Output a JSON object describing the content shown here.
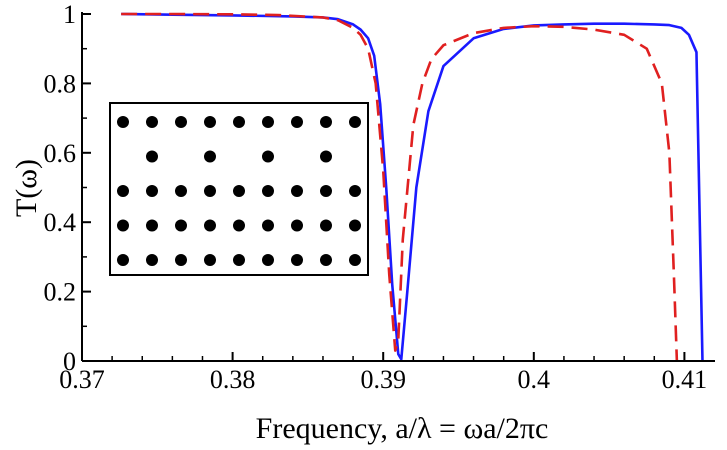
{
  "chart_data": {
    "type": "line",
    "title": "",
    "xlabel": "Frequency,  a/λ = ωa/2πc",
    "ylabel": "T(ω)",
    "xlim": [
      0.37,
      0.4115
    ],
    "ylim": [
      0,
      1
    ],
    "xticks": [
      0.37,
      0.38,
      0.39,
      0.4,
      0.41
    ],
    "xtick_labels": [
      "0.37",
      "0.38",
      "0.39",
      "0.4",
      "0.41"
    ],
    "yticks": [
      0,
      0.2,
      0.4,
      0.6,
      0.8,
      1
    ],
    "ytick_labels": [
      "0",
      "0.2",
      "0.4",
      "0.6",
      "0.8",
      "1"
    ],
    "grid": false,
    "legend": "none",
    "series": [
      {
        "color": "#1a1aff",
        "style": "solid",
        "x": [
          0.3726,
          0.376,
          0.38,
          0.384,
          0.386,
          0.387,
          0.388,
          0.3885,
          0.389,
          0.3894,
          0.3898,
          0.3902,
          0.3906,
          0.391,
          0.3912,
          0.3916,
          0.3922,
          0.393,
          0.394,
          0.396,
          0.398,
          0.4,
          0.402,
          0.404,
          0.406,
          0.408,
          0.409,
          0.4098,
          0.4103,
          0.4108,
          0.4112
        ],
        "y": [
          1.0,
          0.998,
          0.996,
          0.993,
          0.99,
          0.985,
          0.97,
          0.955,
          0.93,
          0.88,
          0.74,
          0.5,
          0.22,
          0.02,
          0.005,
          0.2,
          0.5,
          0.72,
          0.85,
          0.93,
          0.957,
          0.967,
          0.97,
          0.972,
          0.972,
          0.97,
          0.968,
          0.96,
          0.94,
          0.89,
          0.0
        ]
      },
      {
        "color": "#e02020",
        "style": "dashed",
        "x": [
          0.3726,
          0.376,
          0.38,
          0.383,
          0.386,
          0.387,
          0.388,
          0.3885,
          0.389,
          0.3895,
          0.39,
          0.3904,
          0.3908,
          0.391,
          0.3913,
          0.392,
          0.3926,
          0.3932,
          0.394,
          0.396,
          0.398,
          0.4,
          0.402,
          0.404,
          0.406,
          0.4075,
          0.4085,
          0.409,
          0.4093,
          0.4095
        ],
        "y": [
          1.0,
          1.0,
          0.999,
          0.997,
          0.99,
          0.982,
          0.96,
          0.94,
          0.9,
          0.8,
          0.55,
          0.25,
          0.03,
          0.06,
          0.35,
          0.68,
          0.8,
          0.87,
          0.91,
          0.945,
          0.96,
          0.965,
          0.963,
          0.955,
          0.94,
          0.9,
          0.8,
          0.6,
          0.25,
          0.0
        ]
      }
    ],
    "inset": {
      "content": "photonic crystal lattice of dots",
      "rows": [
        [
          1,
          1,
          1,
          1,
          1,
          1,
          1,
          1,
          1
        ],
        [
          0,
          1,
          0,
          1,
          0,
          1,
          0,
          1,
          0
        ],
        [
          1,
          1,
          1,
          1,
          1,
          1,
          1,
          1,
          1
        ],
        [
          1,
          1,
          1,
          1,
          1,
          1,
          1,
          1,
          1
        ],
        [
          1,
          1,
          1,
          1,
          1,
          1,
          1,
          1,
          1
        ]
      ]
    }
  }
}
